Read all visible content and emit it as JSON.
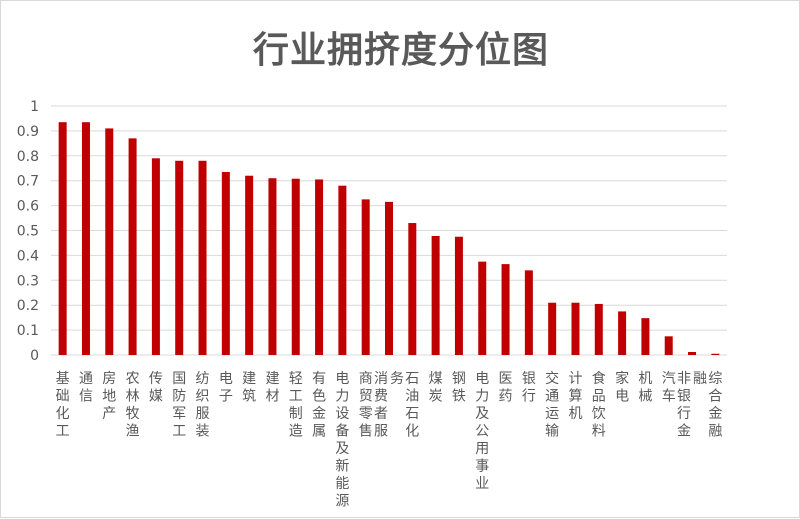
{
  "chart_data": {
    "type": "bar",
    "title": "行业拥挤度分位图",
    "categories": [
      "基础化工",
      "通信",
      "房地产",
      "农林牧渔",
      "传媒",
      "国防军工",
      "纺织服装",
      "电子",
      "建筑",
      "建材",
      "轻工制造",
      "有色金属",
      "电力设备及新能源",
      "商贸零售",
      "消费者服务",
      "石油石化",
      "煤炭",
      "钢铁",
      "电力及公用事业",
      "医药",
      "银行",
      "交通运输",
      "计算机",
      "食品饮料",
      "家电",
      "机械",
      "汽车",
      "非银行金融",
      "综合金融"
    ],
    "values": [
      0.935,
      0.935,
      0.91,
      0.87,
      0.79,
      0.78,
      0.78,
      0.735,
      0.72,
      0.71,
      0.708,
      0.705,
      0.68,
      0.625,
      0.615,
      0.53,
      0.478,
      0.475,
      0.375,
      0.365,
      0.34,
      0.21,
      0.21,
      0.205,
      0.175,
      0.148,
      0.075,
      0.012,
      0.005
    ],
    "ylim": [
      0,
      1
    ],
    "yticks": [
      "0",
      "0.1",
      "0.2",
      "0.3",
      "0.4",
      "0.5",
      "0.6",
      "0.7",
      "0.8",
      "0.9",
      "1"
    ],
    "grid": true,
    "bar_color": "#C00000",
    "grid_color": "#d9d9d9"
  }
}
